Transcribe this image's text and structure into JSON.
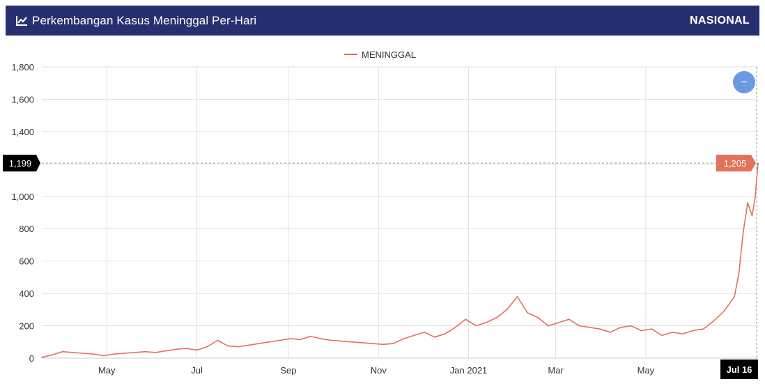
{
  "header": {
    "title": "Perkembangan Kasus Meninggal Per-Hari",
    "region": "NASIONAL",
    "icon": "line-chart-icon"
  },
  "zoom_button": {
    "label": "−",
    "color": "#6a9be0"
  },
  "crosshair": {
    "y_label": "1,199",
    "value_label": "1,205",
    "x_label": "Jul 16"
  },
  "colors": {
    "header_bg": "#27306f",
    "series": "#e2725b",
    "grid": "#e0e0e0",
    "crosshair_box": "#000000"
  },
  "chart_data": {
    "type": "line",
    "title": "",
    "legend": {
      "position": "top-center",
      "entries": [
        "MENINGGAL"
      ]
    },
    "grid": true,
    "x_ticks": [
      "May",
      "Jul",
      "Sep",
      "Nov",
      "Jan 2021",
      "Mar",
      "May"
    ],
    "y_ticks": [
      "0",
      "200",
      "400",
      "600",
      "800",
      "1,000",
      "1,200",
      "1,400",
      "1,600",
      "1,800"
    ],
    "ylim": [
      0,
      1800
    ],
    "xlim": [
      "2020-03-18",
      "2021-07-16"
    ],
    "series": [
      {
        "name": "MENINGGAL",
        "x": [
          "2020-03-18",
          "2020-03-25",
          "2020-04-01",
          "2020-04-08",
          "2020-04-15",
          "2020-04-22",
          "2020-04-29",
          "2020-05-06",
          "2020-05-13",
          "2020-05-20",
          "2020-05-27",
          "2020-06-03",
          "2020-06-10",
          "2020-06-17",
          "2020-06-24",
          "2020-07-01",
          "2020-07-08",
          "2020-07-15",
          "2020-07-22",
          "2020-07-29",
          "2020-08-05",
          "2020-08-12",
          "2020-08-19",
          "2020-08-26",
          "2020-09-02",
          "2020-09-09",
          "2020-09-16",
          "2020-09-23",
          "2020-09-30",
          "2020-10-07",
          "2020-10-14",
          "2020-10-21",
          "2020-10-28",
          "2020-11-04",
          "2020-11-11",
          "2020-11-18",
          "2020-11-25",
          "2020-12-02",
          "2020-12-09",
          "2020-12-16",
          "2020-12-23",
          "2020-12-30",
          "2021-01-06",
          "2021-01-13",
          "2021-01-20",
          "2021-01-27",
          "2021-02-03",
          "2021-02-10",
          "2021-02-17",
          "2021-02-24",
          "2021-03-03",
          "2021-03-10",
          "2021-03-17",
          "2021-03-24",
          "2021-03-31",
          "2021-04-07",
          "2021-04-14",
          "2021-04-21",
          "2021-04-28",
          "2021-05-05",
          "2021-05-12",
          "2021-05-19",
          "2021-05-26",
          "2021-06-02",
          "2021-06-09",
          "2021-06-16",
          "2021-06-23",
          "2021-06-30",
          "2021-07-03",
          "2021-07-06",
          "2021-07-09",
          "2021-07-12",
          "2021-07-14",
          "2021-07-16"
        ],
        "values": [
          5,
          20,
          40,
          35,
          30,
          25,
          15,
          25,
          30,
          35,
          40,
          35,
          45,
          55,
          60,
          50,
          70,
          110,
          75,
          70,
          80,
          90,
          100,
          110,
          120,
          115,
          135,
          120,
          110,
          105,
          100,
          95,
          90,
          85,
          90,
          120,
          140,
          160,
          130,
          150,
          190,
          240,
          200,
          220,
          250,
          300,
          380,
          280,
          250,
          200,
          220,
          240,
          200,
          190,
          180,
          160,
          190,
          200,
          170,
          180,
          140,
          160,
          150,
          170,
          180,
          230,
          290,
          380,
          520,
          780,
          960,
          880,
          990,
          1205
        ]
      }
    ]
  }
}
